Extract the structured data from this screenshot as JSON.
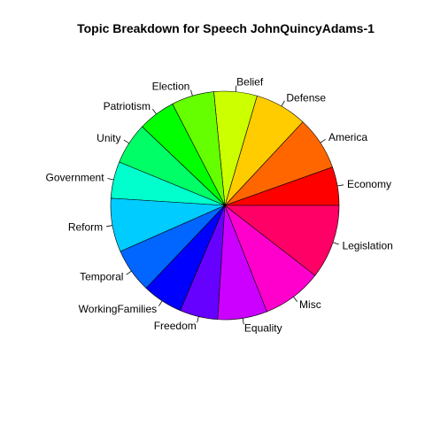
{
  "chart_data": {
    "type": "pie",
    "title": "Topic Breakdown for Speech JohnQuincyAdams-1",
    "start": "3 o'clock",
    "direction": "counter-clockwise",
    "slices": [
      {
        "label": "Economy",
        "value": 5.45,
        "color": "#FF0000"
      },
      {
        "label": "America",
        "value": 7.6,
        "color": "#FF6600"
      },
      {
        "label": "Defense",
        "value": 7.4,
        "color": "#FFCC00"
      },
      {
        "label": "Belief",
        "value": 6.1,
        "color": "#CCFF00"
      },
      {
        "label": "Election",
        "value": 6.05,
        "color": "#66FF00"
      },
      {
        "label": "Patriotism",
        "value": 5.3,
        "color": "#00FF00"
      },
      {
        "label": "Unity",
        "value": 5.9,
        "color": "#00FF66"
      },
      {
        "label": "Government",
        "value": 5.2,
        "color": "#00FFCC"
      },
      {
        "label": "Reform",
        "value": 7.6,
        "color": "#00CCFF"
      },
      {
        "label": "Temporal",
        "value": 6.3,
        "color": "#0066FF"
      },
      {
        "label": "WorkingFamilies",
        "value": 5.7,
        "color": "#0000FF"
      },
      {
        "label": "Freedom",
        "value": 5.4,
        "color": "#6600FF"
      },
      {
        "label": "Equality",
        "value": 7.0,
        "color": "#CC00FF"
      },
      {
        "label": "Misc",
        "value": 8.5,
        "color": "#FF00CC"
      },
      {
        "label": "Legislation",
        "value": 10.5,
        "color": "#FF0066"
      }
    ]
  }
}
